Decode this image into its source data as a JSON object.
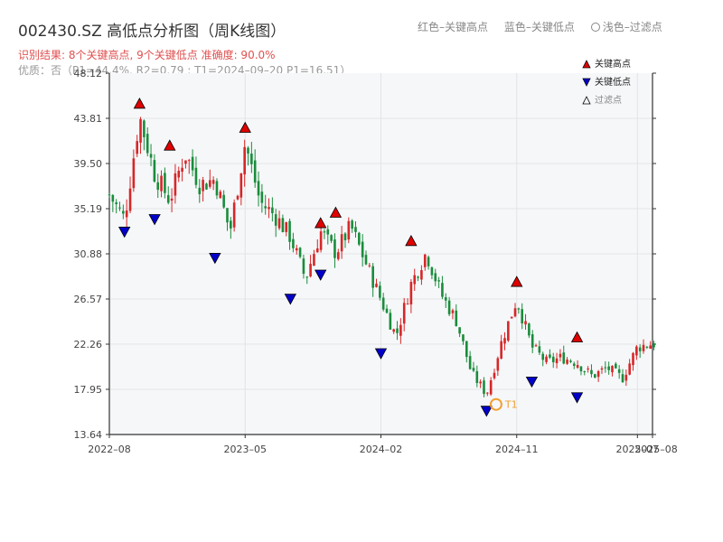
{
  "header": {
    "title": "002430.SZ 高低点分析图（周K线图）",
    "legend_red": "红色–关键高点",
    "legend_blue": "蓝色–关键低点",
    "legend_light": "浅色–过滤点",
    "result_line": "识别结果: 8个关键高点, 9个关键低点  准确度: 90.0%",
    "quality_line": "优质：否（P1=44.4%, R2=0.79 ; T1=2024–09–20 P1=16.51）"
  },
  "legend_box": {
    "high": "关键高点",
    "low": "关键低点",
    "filtered": "过滤点"
  },
  "colors": {
    "up": "#d62728",
    "down": "#1a8c3c",
    "high_marker": "#e00000",
    "low_marker": "#0000cc",
    "t1": "#f0a030",
    "plot_bg": "#f6f7f9",
    "grid": "#e2e4e8"
  },
  "chart_data": {
    "type": "candlestick",
    "x_tick_labels": [
      "2022–08",
      "2023–05",
      "2024–02",
      "2024–11",
      "2025–07",
      "2025–08"
    ],
    "y_tick_labels": [
      "13.64",
      "17.95",
      "22.26",
      "26.57",
      "30.88",
      "35.19",
      "39.50",
      "43.81",
      "48.12"
    ],
    "ylim": [
      13.64,
      48.12
    ],
    "xlim": [
      "2022–08",
      "2025–08"
    ],
    "grid": true,
    "close_path": [
      [
        "2022–08",
        36.5
      ],
      [
        "2022–09",
        34.2
      ],
      [
        "2022–10",
        44.0
      ],
      [
        "2022–11",
        38.5
      ],
      [
        "2022–12",
        36.0
      ],
      [
        "2023–01",
        40.5
      ],
      [
        "2023–02",
        37.5
      ],
      [
        "2023–03",
        38.0
      ],
      [
        "2023–04",
        33.0
      ],
      [
        "2023–05",
        41.5
      ],
      [
        "2023–06",
        35.8
      ],
      [
        "2023–07",
        34.5
      ],
      [
        "2023–08",
        32.5
      ],
      [
        "2023–09",
        28.5
      ],
      [
        "2023–10",
        33.0
      ],
      [
        "2023–11",
        31.0
      ],
      [
        "2023–12",
        33.5
      ],
      [
        "2024–01",
        30.0
      ],
      [
        "2024–02",
        26.5
      ],
      [
        "2024–03",
        23.0
      ],
      [
        "2024–04",
        28.0
      ],
      [
        "2024–05",
        31.0
      ],
      [
        "2024–06",
        27.0
      ],
      [
        "2024–07",
        24.5
      ],
      [
        "2024–08",
        19.5
      ],
      [
        "2024–09",
        17.5
      ],
      [
        "2024–10",
        22.5
      ],
      [
        "2024–11",
        26.5
      ],
      [
        "2024–12",
        22.0
      ],
      [
        "2025–01",
        20.5
      ],
      [
        "2025–02",
        21.0
      ],
      [
        "2025–03",
        20.5
      ],
      [
        "2025–04",
        19.2
      ],
      [
        "2025–05",
        20.0
      ],
      [
        "2025–06",
        19.0
      ],
      [
        "2025–07",
        22.0
      ],
      [
        "2025–08",
        22.3
      ]
    ],
    "key_highs": [
      {
        "x": "2022–10",
        "y": 44.6
      },
      {
        "x": "2022–12",
        "y": 40.6
      },
      {
        "x": "2023–05",
        "y": 42.3
      },
      {
        "x": "2023–10",
        "y": 33.2
      },
      {
        "x": "2023–11",
        "y": 34.2
      },
      {
        "x": "2024–04",
        "y": 31.5
      },
      {
        "x": "2024–11",
        "y": 27.6
      },
      {
        "x": "2025–03",
        "y": 22.3
      }
    ],
    "key_lows": [
      {
        "x": "2022–09",
        "y": 33.6
      },
      {
        "x": "2022–11",
        "y": 34.8
      },
      {
        "x": "2023–03",
        "y": 31.1
      },
      {
        "x": "2023–08",
        "y": 27.2
      },
      {
        "x": "2023–10",
        "y": 29.5
      },
      {
        "x": "2024–02",
        "y": 22.0
      },
      {
        "x": "2024–09",
        "y": 16.51
      },
      {
        "x": "2024–12",
        "y": 19.3
      },
      {
        "x": "2025–03",
        "y": 17.8
      }
    ],
    "t1_point": {
      "x": "2024–09–20",
      "y": 16.51,
      "label": "T1"
    }
  }
}
